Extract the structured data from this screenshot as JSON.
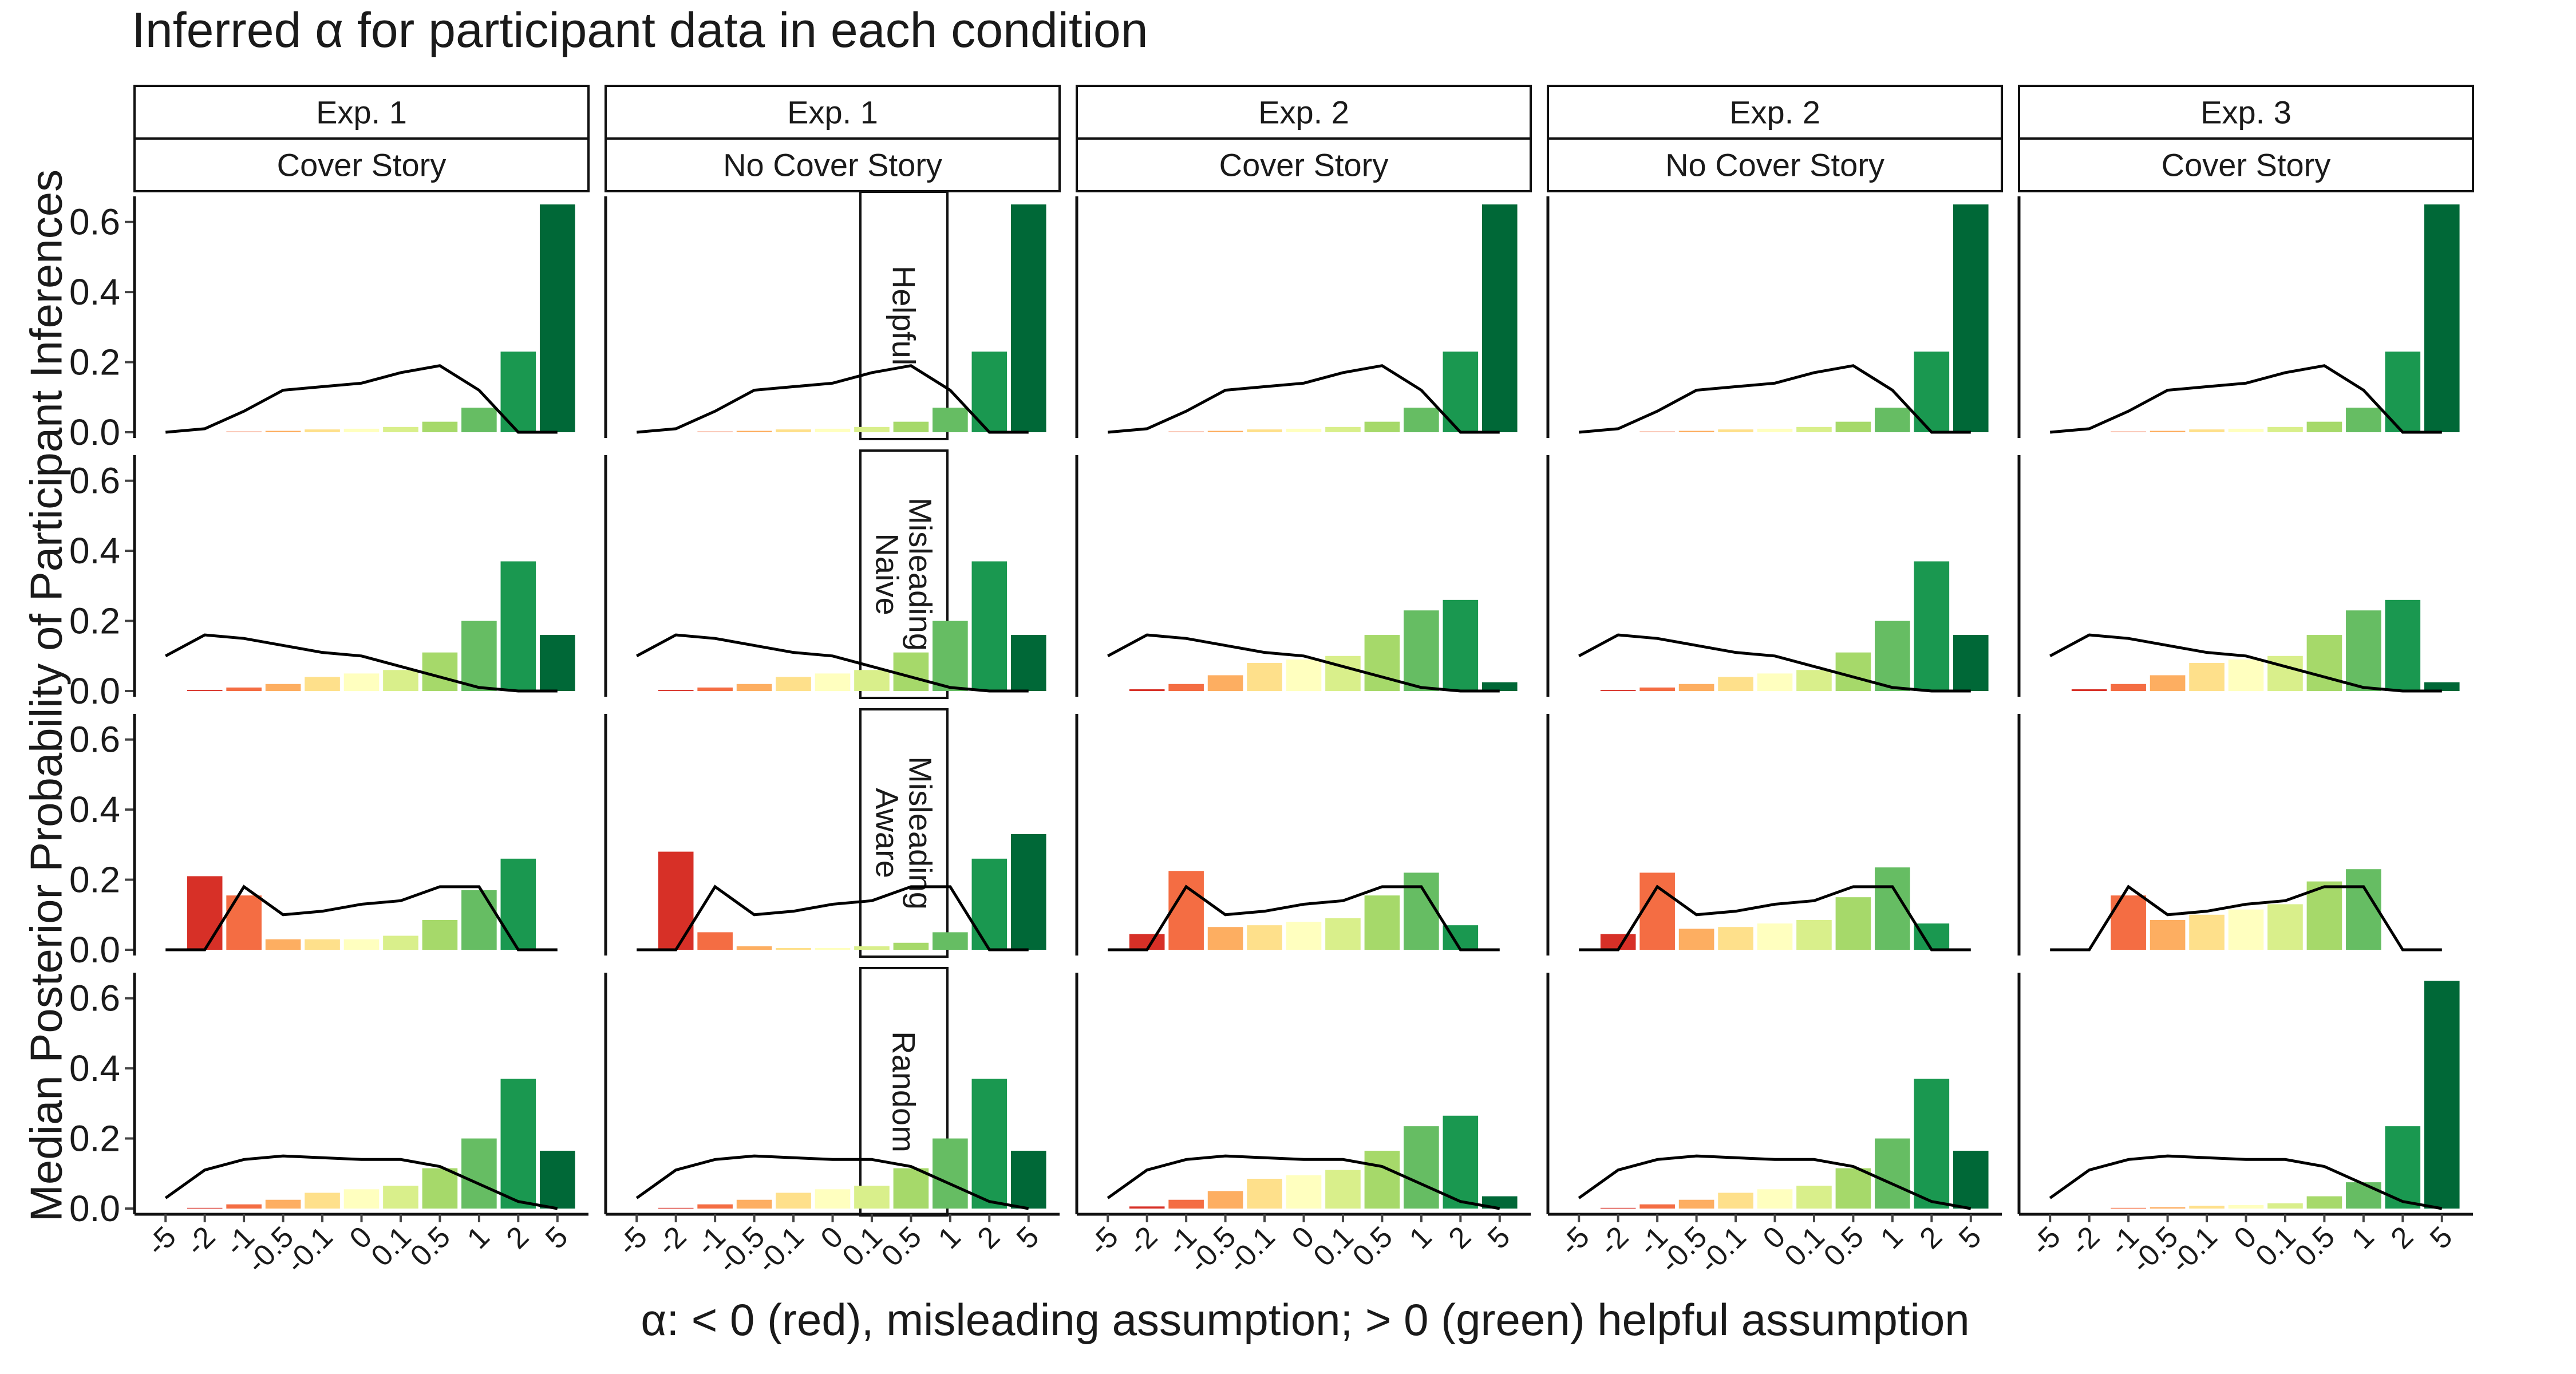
{
  "chart_data": {
    "type": "bar",
    "title": "Inferred α for participant data in each condition",
    "xlabel": "α: < 0 (red), misleading assumption; > 0 (green) helpful assumption",
    "ylabel": "Median Posterior Probability of Participant Inferences",
    "categories": [
      "-5",
      "-2",
      "-1",
      "-0.5",
      "-0.1",
      "0",
      "0.1",
      "0.5",
      "1",
      "2",
      "5"
    ],
    "ylim": [
      0,
      0.66
    ],
    "yticks": [
      0.0,
      0.2,
      0.4,
      0.6
    ],
    "ytick_labels": [
      "0.0",
      "0.2",
      "0.4",
      "0.6"
    ],
    "grid": false,
    "legend": "none",
    "bar_colors": [
      "#d73027",
      "#d73027",
      "#f46d43",
      "#fdae61",
      "#fee08b",
      "#ffffbf",
      "#d9ef8b",
      "#a6d96a",
      "#66bd63",
      "#1a9850",
      "#006837"
    ],
    "line_color": "#000000",
    "columns": [
      {
        "experiment": "Exp. 1",
        "condition": "Cover Story"
      },
      {
        "experiment": "Exp. 1",
        "condition": "No Cover Story"
      },
      {
        "experiment": "Exp. 2",
        "condition": "Cover Story"
      },
      {
        "experiment": "Exp. 2",
        "condition": "No Cover Story"
      },
      {
        "experiment": "Exp. 3",
        "condition": "Cover Story"
      }
    ],
    "rows": [
      {
        "label": [
          "Helpful"
        ]
      },
      {
        "label": [
          "Misleading",
          "Naive"
        ]
      },
      {
        "label": [
          "Misleading",
          "Aware"
        ]
      },
      {
        "label": [
          "Random"
        ]
      }
    ],
    "prior_lines": [
      [
        0.0,
        0.01,
        0.06,
        0.12,
        0.13,
        0.14,
        0.17,
        0.19,
        0.12,
        0.0,
        0.0
      ],
      [
        0.1,
        0.16,
        0.15,
        0.13,
        0.11,
        0.1,
        0.07,
        0.04,
        0.01,
        0.0,
        0.0
      ],
      [
        0.0,
        0.0,
        0.18,
        0.1,
        0.11,
        0.13,
        0.14,
        0.18,
        0.18,
        0.0,
        0.0
      ],
      [
        0.03,
        0.11,
        0.14,
        0.15,
        0.145,
        0.14,
        0.14,
        0.12,
        0.07,
        0.02,
        0.0
      ]
    ],
    "panels": [
      [
        {
          "values": [
            0.0,
            0.0,
            0.002,
            0.004,
            0.008,
            0.01,
            0.015,
            0.03,
            0.07,
            0.23,
            0.65
          ]
        },
        {
          "values": [
            0.0,
            0.0,
            0.002,
            0.004,
            0.008,
            0.01,
            0.015,
            0.03,
            0.07,
            0.23,
            0.65
          ]
        },
        {
          "values": [
            0.0,
            0.0,
            0.002,
            0.004,
            0.008,
            0.01,
            0.015,
            0.03,
            0.07,
            0.23,
            0.65
          ]
        },
        {
          "values": [
            0.0,
            0.0,
            0.002,
            0.004,
            0.008,
            0.01,
            0.015,
            0.03,
            0.07,
            0.23,
            0.65
          ]
        },
        {
          "values": [
            0.0,
            0.0,
            0.002,
            0.004,
            0.008,
            0.01,
            0.015,
            0.03,
            0.07,
            0.23,
            0.65
          ]
        }
      ],
      [
        {
          "values": [
            0.0,
            0.003,
            0.01,
            0.02,
            0.04,
            0.05,
            0.06,
            0.11,
            0.2,
            0.37,
            0.16
          ]
        },
        {
          "values": [
            0.0,
            0.003,
            0.01,
            0.02,
            0.04,
            0.05,
            0.06,
            0.11,
            0.2,
            0.37,
            0.16
          ]
        },
        {
          "values": [
            0.0,
            0.005,
            0.02,
            0.045,
            0.08,
            0.09,
            0.1,
            0.16,
            0.23,
            0.26,
            0.025
          ]
        },
        {
          "values": [
            0.0,
            0.003,
            0.01,
            0.02,
            0.04,
            0.05,
            0.06,
            0.11,
            0.2,
            0.37,
            0.16
          ]
        },
        {
          "values": [
            0.0,
            0.005,
            0.02,
            0.045,
            0.08,
            0.09,
            0.1,
            0.16,
            0.23,
            0.26,
            0.025
          ]
        }
      ],
      [
        {
          "values": [
            0.0,
            0.21,
            0.155,
            0.03,
            0.03,
            0.03,
            0.04,
            0.085,
            0.17,
            0.26,
            0.0
          ]
        },
        {
          "values": [
            0.0,
            0.28,
            0.05,
            0.01,
            0.005,
            0.005,
            0.01,
            0.02,
            0.05,
            0.26,
            0.33
          ]
        },
        {
          "values": [
            0.0,
            0.045,
            0.225,
            0.065,
            0.07,
            0.08,
            0.09,
            0.155,
            0.22,
            0.07,
            0.0
          ]
        },
        {
          "values": [
            0.0,
            0.045,
            0.22,
            0.06,
            0.065,
            0.075,
            0.085,
            0.15,
            0.235,
            0.075,
            0.0
          ]
        },
        {
          "values": [
            0.0,
            0.0,
            0.155,
            0.085,
            0.1,
            0.115,
            0.13,
            0.195,
            0.23,
            0.0,
            0.0
          ]
        }
      ],
      [
        {
          "values": [
            0.0,
            0.002,
            0.012,
            0.025,
            0.045,
            0.055,
            0.065,
            0.115,
            0.2,
            0.37,
            0.165
          ]
        },
        {
          "values": [
            0.0,
            0.002,
            0.012,
            0.025,
            0.045,
            0.055,
            0.065,
            0.115,
            0.2,
            0.37,
            0.165
          ]
        },
        {
          "values": [
            0.0,
            0.006,
            0.025,
            0.05,
            0.085,
            0.095,
            0.11,
            0.165,
            0.235,
            0.265,
            0.035
          ]
        },
        {
          "values": [
            0.0,
            0.002,
            0.012,
            0.025,
            0.045,
            0.055,
            0.065,
            0.115,
            0.2,
            0.37,
            0.165
          ]
        },
        {
          "values": [
            0.0,
            0.0,
            0.002,
            0.004,
            0.008,
            0.01,
            0.015,
            0.035,
            0.075,
            0.235,
            0.65
          ]
        }
      ]
    ]
  }
}
